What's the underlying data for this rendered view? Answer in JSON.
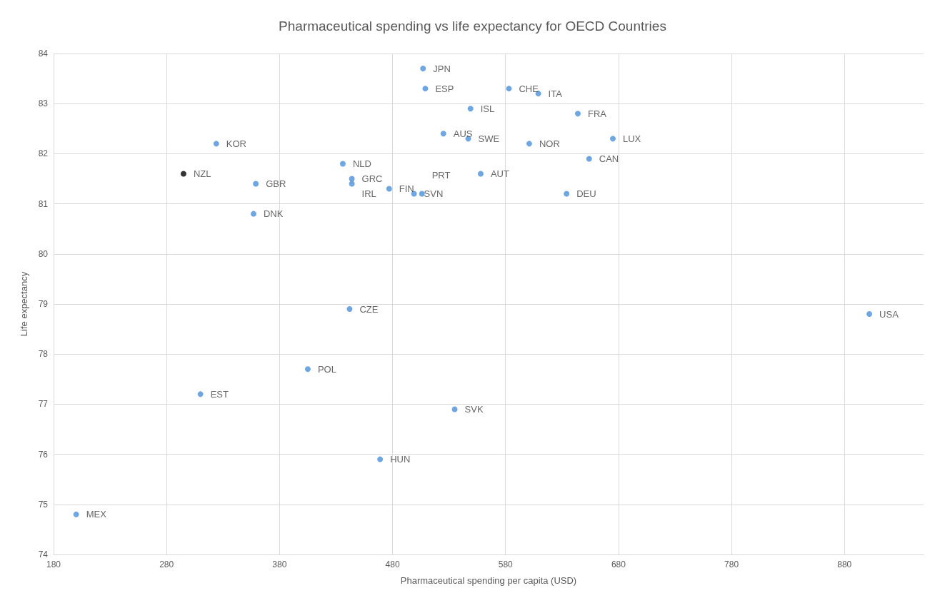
{
  "chart_data": {
    "type": "scatter",
    "title": "Pharmaceutical spending vs life expectancy for OECD Countries",
    "xlabel": "Pharmaceutical spending per capita (USD)",
    "ylabel": "Life expectancy",
    "x": [
      200,
      310,
      405,
      442,
      469,
      535,
      902,
      324,
      295,
      359,
      357,
      436,
      444,
      444,
      477,
      499,
      506,
      507,
      509,
      549,
      525,
      547,
      558,
      583,
      609,
      601,
      644,
      675,
      654,
      634
    ],
    "values": [
      74.8,
      77.2,
      77.7,
      78.9,
      75.9,
      76.9,
      78.8,
      82.2,
      81.6,
      81.4,
      80.8,
      81.8,
      81.5,
      81.4,
      81.3,
      81.2,
      81.2,
      83.7,
      83.3,
      82.9,
      82.4,
      82.3,
      81.6,
      83.3,
      83.2,
      82.2,
      82.8,
      82.3,
      81.9,
      81.2
    ],
    "colors": [
      "#4a90d9",
      "#4a90d9",
      "#4a90d9",
      "#4a90d9",
      "#4a90d9",
      "#4a90d9",
      "#4a90d9",
      "#4a90d9",
      "#000000",
      "#4a90d9",
      "#4a90d9",
      "#4a90d9",
      "#4a90d9",
      "#4a90d9",
      "#4a90d9",
      "#4a90d9",
      "#4a90d9",
      "#4a90d9",
      "#4a90d9",
      "#4a90d9",
      "#4a90d9",
      "#4a90d9",
      "#4a90d9",
      "#4a90d9",
      "#4a90d9",
      "#4a90d9",
      "#4a90d9",
      "#4a90d9",
      "#4a90d9",
      "#4a90d9"
    ],
    "annotations": [
      {
        "text": "MEX",
        "x": 200,
        "y": 74.8
      },
      {
        "text": "EST",
        "x": 310,
        "y": 77.2
      },
      {
        "text": "POL",
        "x": 405,
        "y": 77.7
      },
      {
        "text": "CZE",
        "x": 442,
        "y": 78.9
      },
      {
        "text": "HUN",
        "x": 469,
        "y": 75.9
      },
      {
        "text": "SVK",
        "x": 535,
        "y": 76.9
      },
      {
        "text": "USA",
        "x": 902,
        "y": 78.8
      },
      {
        "text": "KOR",
        "x": 324,
        "y": 82.2
      },
      {
        "text": "NZL",
        "x": 295,
        "y": 81.6
      },
      {
        "text": "GBR",
        "x": 359,
        "y": 81.4
      },
      {
        "text": "DNK",
        "x": 357,
        "y": 80.8
      },
      {
        "text": "NLD",
        "x": 436,
        "y": 81.8
      },
      {
        "text": "GRC",
        "x": 444,
        "y": 81.5
      },
      {
        "text": "IRL",
        "x": 444,
        "y": 81.4
      },
      {
        "text": "FIN",
        "x": 477,
        "y": 81.3
      },
      {
        "text": "SVN",
        "x": 499,
        "y": 81.2
      },
      {
        "text": "PRT",
        "x": 506,
        "y": 81.2
      },
      {
        "text": "JPN",
        "x": 507,
        "y": 83.7
      },
      {
        "text": "ESP",
        "x": 509,
        "y": 83.3
      },
      {
        "text": "ISL",
        "x": 549,
        "y": 82.9
      },
      {
        "text": "AUS",
        "x": 525,
        "y": 82.4
      },
      {
        "text": "SWE",
        "x": 547,
        "y": 82.3
      },
      {
        "text": "AUT",
        "x": 558,
        "y": 81.6
      },
      {
        "text": "CHE",
        "x": 583,
        "y": 83.3
      },
      {
        "text": "ITA",
        "x": 609,
        "y": 83.2
      },
      {
        "text": "NOR",
        "x": 601,
        "y": 82.2
      },
      {
        "text": "FRA",
        "x": 644,
        "y": 82.8
      },
      {
        "text": "LUX",
        "x": 675,
        "y": 82.3
      },
      {
        "text": "CAN",
        "x": 654,
        "y": 81.9
      },
      {
        "text": "DEU",
        "x": 634,
        "y": 81.2
      }
    ],
    "xlim": [
      180,
      950
    ],
    "xticks": [
      180,
      280,
      380,
      480,
      580,
      680,
      780,
      880
    ],
    "ylim": [
      74,
      84
    ],
    "yticks": [
      74,
      75,
      76,
      77,
      78,
      79,
      80,
      81,
      82,
      83,
      84
    ],
    "grid": true,
    "marker": "circle"
  }
}
